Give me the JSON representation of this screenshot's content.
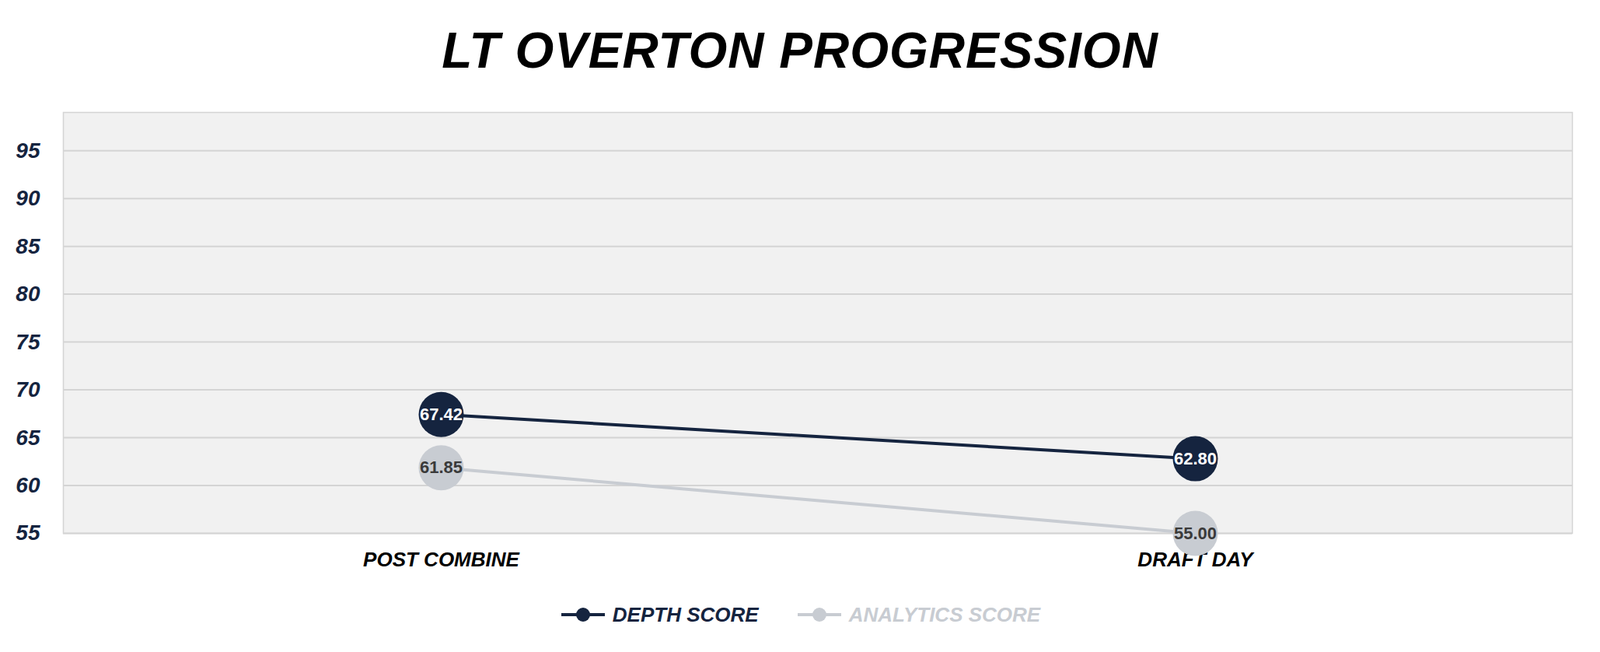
{
  "chart_data": {
    "type": "line",
    "title": "LT OVERTON PROGRESSION",
    "categories": [
      "POST COMBINE",
      "DRAFT DAY"
    ],
    "series": [
      {
        "name": "DEPTH SCORE",
        "color": "#15243f",
        "marker": "circle",
        "values": [
          67.42,
          62.8
        ],
        "value_labels": [
          "67.42",
          "62.80"
        ]
      },
      {
        "name": "ANALYTICS SCORE",
        "color": "#c8ccd2",
        "marker": "circle",
        "values": [
          61.85,
          55.0
        ],
        "value_labels": [
          "61.85",
          "55.00"
        ]
      }
    ],
    "ylim": [
      55,
      99
    ],
    "yticks": [
      55,
      60,
      65,
      70,
      75,
      80,
      85,
      90,
      95
    ],
    "grid": true,
    "legend": "bottom",
    "data_labels": true
  }
}
